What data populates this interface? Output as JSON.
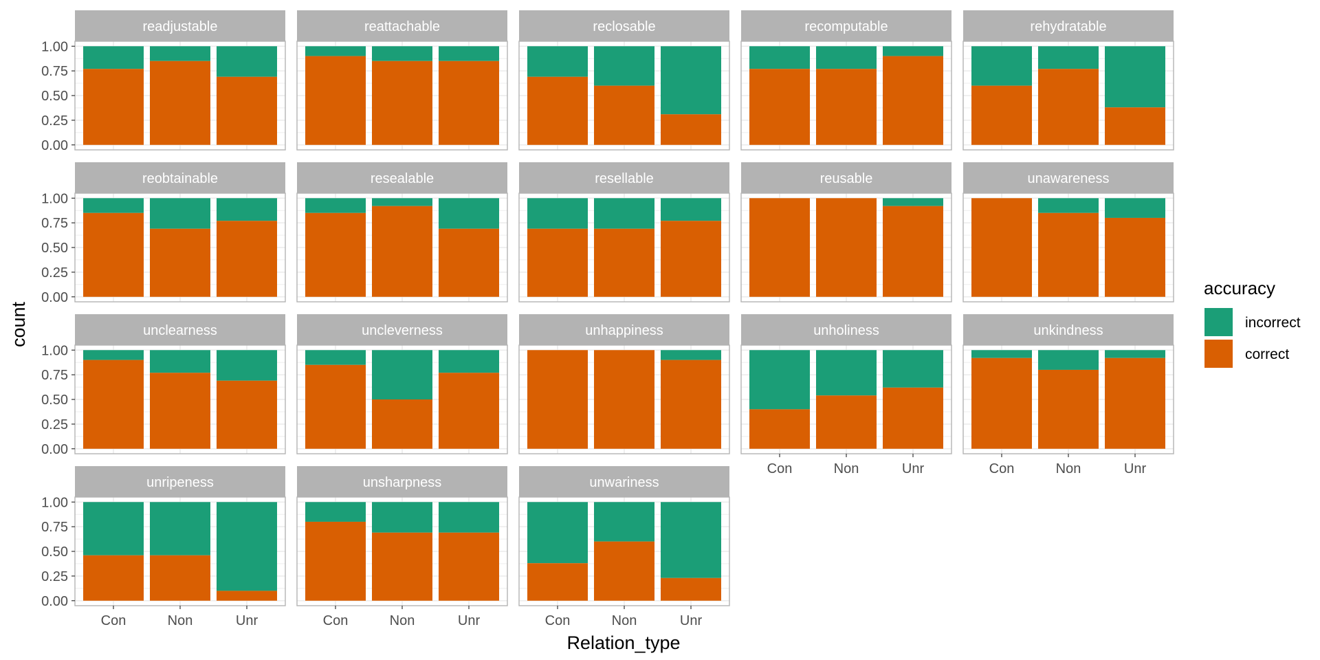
{
  "chart_data": {
    "type": "bar",
    "stacked": true,
    "faceted": true,
    "xlabel": "Relation_type",
    "ylabel": "count",
    "ylim": [
      0,
      1
    ],
    "yticks": [
      "0.00",
      "0.25",
      "0.50",
      "0.75",
      "1.00"
    ],
    "categories": [
      "Con",
      "Non",
      "Unr"
    ],
    "legend": {
      "title": "accuracy",
      "placement": "right",
      "entries": [
        {
          "name": "incorrect",
          "color": "#1b9e77"
        },
        {
          "name": "correct",
          "color": "#d95f02"
        }
      ]
    },
    "colors": {
      "correct": "#d95f02",
      "incorrect": "#1b9e77",
      "strip": "#b3b3b3",
      "grid": "#ebebeb",
      "panel_border": "#b3b3b3"
    },
    "facets": [
      {
        "name": "readjustable",
        "correct": [
          0.77,
          0.85,
          0.69
        ]
      },
      {
        "name": "reattachable",
        "correct": [
          0.9,
          0.85,
          0.85
        ]
      },
      {
        "name": "reclosable",
        "correct": [
          0.69,
          0.6,
          0.31
        ]
      },
      {
        "name": "recomputable",
        "correct": [
          0.77,
          0.77,
          0.9
        ]
      },
      {
        "name": "rehydratable",
        "correct": [
          0.6,
          0.77,
          0.38
        ]
      },
      {
        "name": "reobtainable",
        "correct": [
          0.85,
          0.69,
          0.77
        ]
      },
      {
        "name": "resealable",
        "correct": [
          0.85,
          0.92,
          0.69
        ]
      },
      {
        "name": "resellable",
        "correct": [
          0.69,
          0.69,
          0.77
        ]
      },
      {
        "name": "reusable",
        "correct": [
          1.0,
          1.0,
          0.92
        ]
      },
      {
        "name": "unawareness",
        "correct": [
          1.0,
          0.85,
          0.8
        ]
      },
      {
        "name": "unclearness",
        "correct": [
          0.9,
          0.77,
          0.69
        ]
      },
      {
        "name": "uncleverness",
        "correct": [
          0.85,
          0.5,
          0.77
        ]
      },
      {
        "name": "unhappiness",
        "correct": [
          1.0,
          1.0,
          0.9
        ]
      },
      {
        "name": "unholiness",
        "correct": [
          0.4,
          0.54,
          0.62
        ]
      },
      {
        "name": "unkindness",
        "correct": [
          0.92,
          0.8,
          0.92
        ]
      },
      {
        "name": "unripeness",
        "correct": [
          0.46,
          0.46,
          0.1
        ]
      },
      {
        "name": "unsharpness",
        "correct": [
          0.8,
          0.69,
          0.69
        ]
      },
      {
        "name": "unwariness",
        "correct": [
          0.38,
          0.6,
          0.23
        ]
      }
    ]
  }
}
